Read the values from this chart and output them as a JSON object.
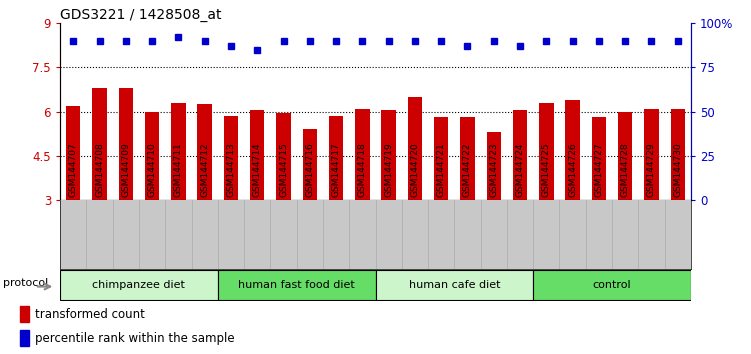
{
  "title": "GDS3221 / 1428508_at",
  "samples": [
    "GSM144707",
    "GSM144708",
    "GSM144709",
    "GSM144710",
    "GSM144711",
    "GSM144712",
    "GSM144713",
    "GSM144714",
    "GSM144715",
    "GSM144716",
    "GSM144717",
    "GSM144718",
    "GSM144719",
    "GSM144720",
    "GSM144721",
    "GSM144722",
    "GSM144723",
    "GSM144724",
    "GSM144725",
    "GSM144726",
    "GSM144727",
    "GSM144728",
    "GSM144729",
    "GSM144730"
  ],
  "red_values": [
    6.2,
    6.8,
    6.8,
    6.0,
    6.3,
    6.25,
    5.85,
    6.05,
    5.95,
    5.42,
    5.85,
    6.1,
    6.05,
    6.5,
    5.82,
    5.82,
    5.3,
    6.05,
    6.3,
    6.4,
    5.8,
    6.0,
    6.1,
    6.1
  ],
  "blue_values_pct": [
    90,
    90,
    90,
    90,
    92,
    90,
    87,
    85,
    90,
    90,
    90,
    90,
    90,
    90,
    90,
    87,
    90,
    87,
    90,
    90,
    90,
    90,
    90,
    90
  ],
  "ylim_left": [
    3,
    9
  ],
  "yticks_left": [
    3,
    4.5,
    6,
    7.5,
    9
  ],
  "ytick_labels_left": [
    "3",
    "4.5",
    "6",
    "7.5",
    "9"
  ],
  "ylim_right": [
    0,
    100
  ],
  "yticks_right": [
    0,
    25,
    50,
    75,
    100
  ],
  "ytick_labels_right": [
    "0",
    "25",
    "50",
    "75",
    "100%"
  ],
  "groups": [
    {
      "label": "chimpanzee diet",
      "start": 0,
      "end": 6,
      "color": "#ccf5cc"
    },
    {
      "label": "human fast food diet",
      "start": 6,
      "end": 12,
      "color": "#66dd66"
    },
    {
      "label": "human cafe diet",
      "start": 12,
      "end": 18,
      "color": "#ccf5cc"
    },
    {
      "label": "control",
      "start": 18,
      "end": 24,
      "color": "#66dd66"
    }
  ],
  "bar_color": "#cc0000",
  "dot_color": "#0000cc",
  "background_color": "#ffffff",
  "tick_bg_color": "#c8c8c8",
  "protocol_label": "protocol",
  "legend_red": "transformed count",
  "legend_blue": "percentile rank within the sample",
  "n_samples": 24
}
